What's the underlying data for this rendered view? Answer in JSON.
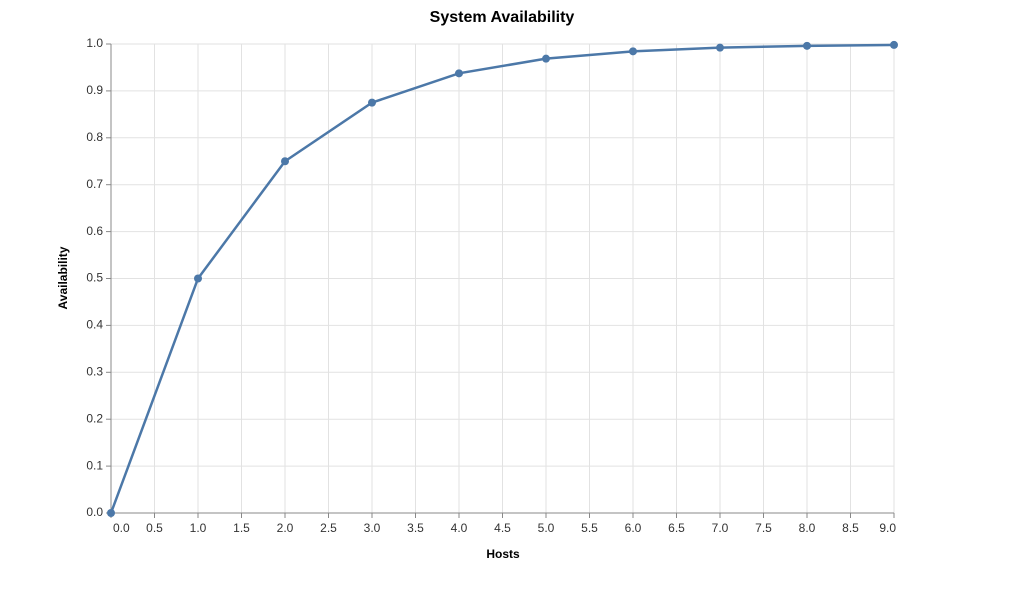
{
  "chart_data": {
    "type": "line",
    "title": "System Availability",
    "x_label": "Hosts",
    "y_label": "Availability",
    "x": [
      0,
      1,
      2,
      3,
      4,
      5,
      6,
      7,
      8,
      9
    ],
    "series": [
      {
        "name": "Availability",
        "color": "#4c78a8",
        "values": [
          0,
          0.5,
          0.75,
          0.875,
          0.9375,
          0.96875,
          0.984375,
          0.9921875,
          0.99609375,
          0.998046875
        ]
      }
    ],
    "xlim": [
      0,
      9
    ],
    "xticks": [
      {
        "value": 0,
        "label": "0.0"
      },
      {
        "value": 0.5,
        "label": "0.5"
      },
      {
        "value": 1,
        "label": "1.0"
      },
      {
        "value": 1.5,
        "label": "1.5"
      },
      {
        "value": 2,
        "label": "2.0"
      },
      {
        "value": 2.5,
        "label": "2.5"
      },
      {
        "value": 3,
        "label": "3.0"
      },
      {
        "value": 3.5,
        "label": "3.5"
      },
      {
        "value": 4,
        "label": "4.0"
      },
      {
        "value": 4.5,
        "label": "4.5"
      },
      {
        "value": 5,
        "label": "5.0"
      },
      {
        "value": 5.5,
        "label": "5.5"
      },
      {
        "value": 6,
        "label": "6.0"
      },
      {
        "value": 6.5,
        "label": "6.5"
      },
      {
        "value": 7,
        "label": "7.0"
      },
      {
        "value": 7.5,
        "label": "7.5"
      },
      {
        "value": 8,
        "label": "8.0"
      },
      {
        "value": 8.5,
        "label": "8.5"
      },
      {
        "value": 9,
        "label": "9.0"
      }
    ],
    "ylim": [
      0,
      1
    ],
    "yticks": [
      {
        "value": 0,
        "label": "0.0"
      },
      {
        "value": 0.1,
        "label": "0.1"
      },
      {
        "value": 0.2,
        "label": "0.2"
      },
      {
        "value": 0.3,
        "label": "0.3"
      },
      {
        "value": 0.4,
        "label": "0.4"
      },
      {
        "value": 0.5,
        "label": "0.5"
      },
      {
        "value": 0.6,
        "label": "0.6"
      },
      {
        "value": 0.7,
        "label": "0.7"
      },
      {
        "value": 0.8,
        "label": "0.8"
      },
      {
        "value": 0.9,
        "label": "0.9"
      },
      {
        "value": 1,
        "label": "1.0"
      }
    ],
    "grid": true
  }
}
